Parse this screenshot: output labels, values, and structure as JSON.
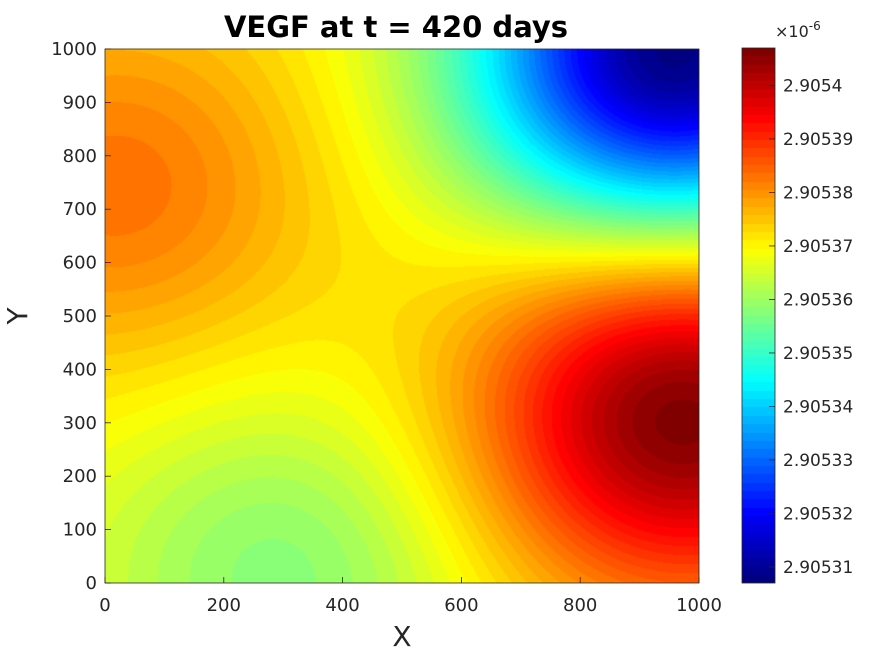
{
  "chart_data": {
    "type": "heatmap",
    "title": "VEGF at t = 420 days",
    "xlabel": "X",
    "ylabel": "Y",
    "xlim": [
      0,
      1000
    ],
    "ylim": [
      0,
      1000
    ],
    "x_ticks": [
      0,
      200,
      400,
      600,
      800,
      1000
    ],
    "y_ticks": [
      0,
      100,
      200,
      300,
      400,
      500,
      600,
      700,
      800,
      900,
      1000
    ],
    "colormap": "jet",
    "colorbar": {
      "min": 2.905307,
      "max": 2.905407,
      "exponent_label": "×10",
      "exponent_power": "-6",
      "ticks": [
        2.90531,
        2.90532,
        2.90533,
        2.90534,
        2.90535,
        2.90536,
        2.90537,
        2.90538,
        2.90539,
        2.9054
      ],
      "tick_labels": [
        "2.90531",
        "2.90532",
        "2.90533",
        "2.90534",
        "2.90535",
        "2.90536",
        "2.90537",
        "2.90538",
        "2.90539",
        "2.9054"
      ]
    },
    "field": {
      "description": "contour-filled scalar field",
      "baseline": 2.90537,
      "features": [
        {
          "kind": "peak",
          "x": 970,
          "y": 320,
          "value": 2.905406
        },
        {
          "kind": "trough",
          "x": 960,
          "y": 990,
          "value": 2.905308
        },
        {
          "kind": "local_max",
          "x": 20,
          "y": 740,
          "value": 2.905383
        },
        {
          "kind": "local_min",
          "x": 300,
          "y": 20,
          "value": 2.905358
        }
      ]
    }
  }
}
